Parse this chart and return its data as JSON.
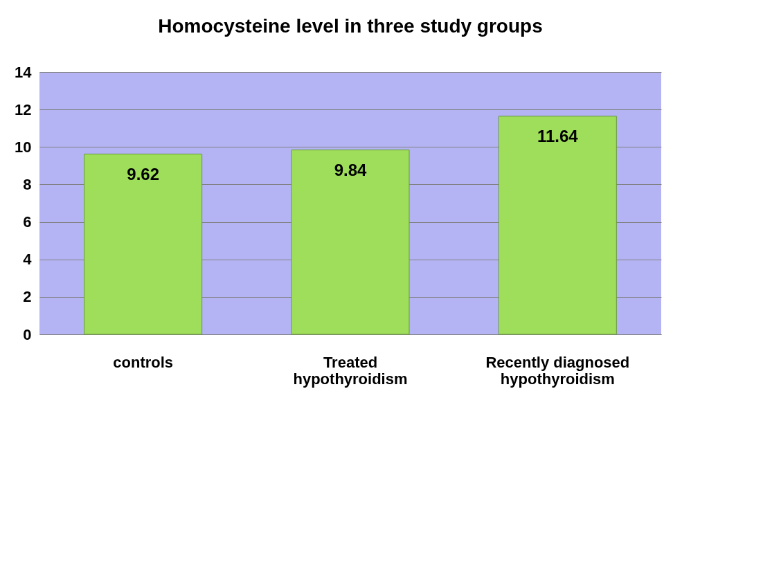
{
  "chart_data": {
    "type": "bar",
    "title": "Homocysteine level in three study groups",
    "categories": [
      "controls",
      "Treated hypothyroidism",
      "Recently  diagnosed hypothyroidism"
    ],
    "values": [
      9.62,
      9.84,
      11.64
    ],
    "color": "#9ede5a",
    "ylim": [
      0,
      14
    ],
    "yticks": [
      0,
      2,
      4,
      6,
      8,
      10,
      12,
      14
    ],
    "grid": "y",
    "data_labels": true
  }
}
